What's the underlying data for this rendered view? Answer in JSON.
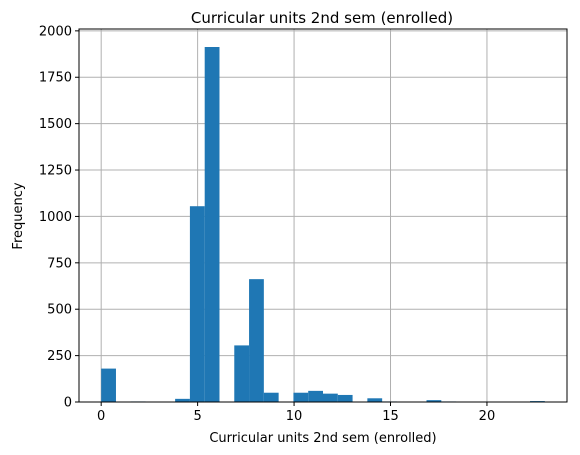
{
  "chart_data": {
    "type": "bar",
    "title": "Curricular units 2nd sem (enrolled)",
    "xlabel": "Curricular units 2nd sem (enrolled)",
    "ylabel": "Frequency",
    "xlim": [
      -1.15,
      24.15
    ],
    "ylim": [
      0,
      2010
    ],
    "xticks": [
      0,
      5,
      10,
      15,
      20
    ],
    "yticks": [
      0,
      250,
      500,
      750,
      1000,
      1250,
      1500,
      1750,
      2000
    ],
    "grid": true,
    "bin_width": 0.7667,
    "bins": [
      {
        "x0": 0.0,
        "value": 180
      },
      {
        "x0": 0.7667,
        "value": 2
      },
      {
        "x0": 1.5333,
        "value": 3
      },
      {
        "x0": 2.3,
        "value": 2
      },
      {
        "x0": 3.0667,
        "value": 0
      },
      {
        "x0": 3.8333,
        "value": 17
      },
      {
        "x0": 4.6,
        "value": 1055
      },
      {
        "x0": 5.3667,
        "value": 1913
      },
      {
        "x0": 6.1333,
        "value": 0
      },
      {
        "x0": 6.9,
        "value": 305
      },
      {
        "x0": 7.6667,
        "value": 662
      },
      {
        "x0": 8.4333,
        "value": 50
      },
      {
        "x0": 9.2,
        "value": 0
      },
      {
        "x0": 9.9667,
        "value": 50
      },
      {
        "x0": 10.7333,
        "value": 60
      },
      {
        "x0": 11.5,
        "value": 45
      },
      {
        "x0": 12.2667,
        "value": 38
      },
      {
        "x0": 13.0333,
        "value": 0
      },
      {
        "x0": 13.8,
        "value": 20
      },
      {
        "x0": 14.5667,
        "value": 3
      },
      {
        "x0": 15.3333,
        "value": 0
      },
      {
        "x0": 16.1,
        "value": 0
      },
      {
        "x0": 16.8667,
        "value": 10
      },
      {
        "x0": 17.6333,
        "value": 3
      },
      {
        "x0": 18.4,
        "value": 2
      },
      {
        "x0": 19.1667,
        "value": 0
      },
      {
        "x0": 19.9333,
        "value": 0
      },
      {
        "x0": 20.7,
        "value": 0
      },
      {
        "x0": 21.4667,
        "value": 0
      },
      {
        "x0": 22.2333,
        "value": 5
      }
    ],
    "colors": {
      "bar": "#1f77b4",
      "grid": "#b0b0b0",
      "axis": "#000000"
    }
  }
}
